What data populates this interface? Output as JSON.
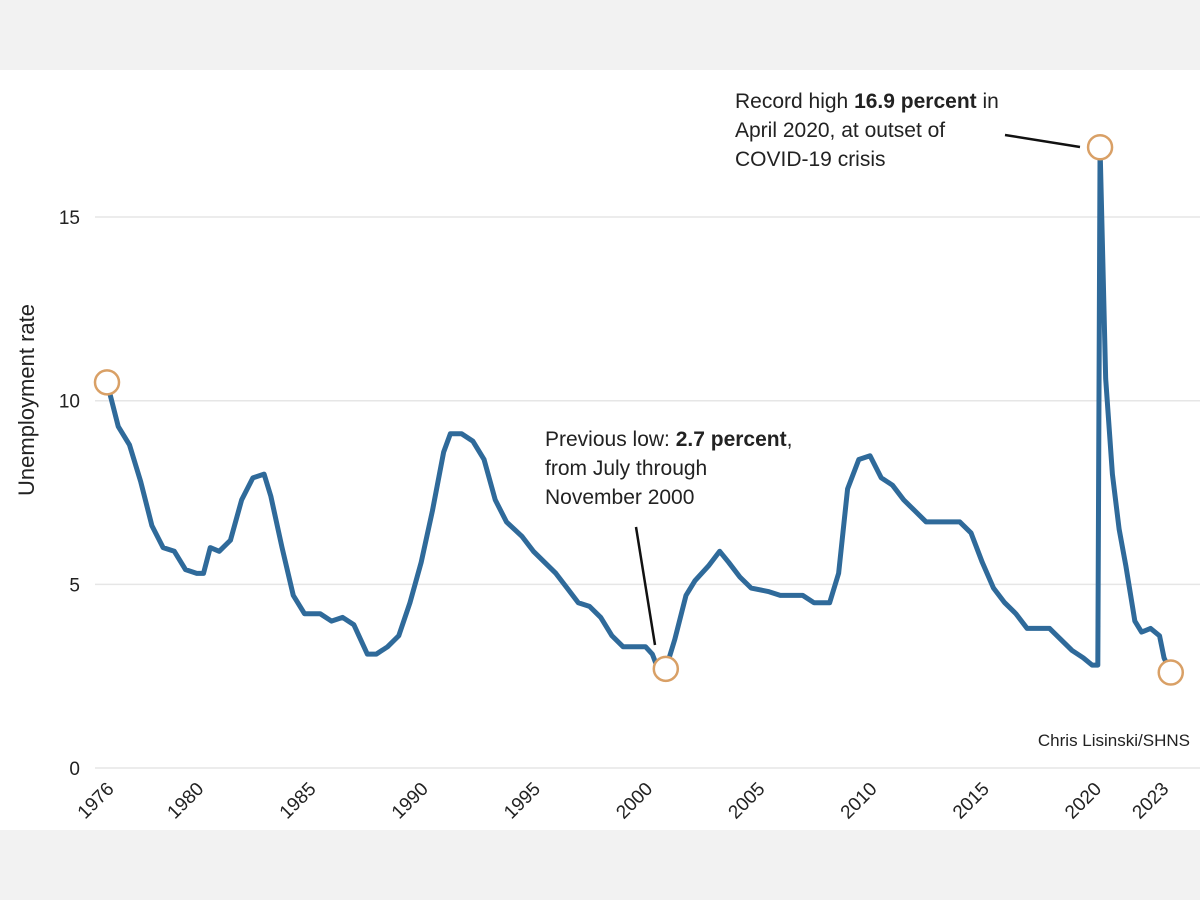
{
  "chart_data": {
    "type": "line",
    "y_label": "Unemployment rate",
    "source": "Chris Lisinski/SHNS",
    "x": [
      1976.0,
      1976.5,
      1977.0,
      1977.5,
      1978.0,
      1978.5,
      1979.0,
      1979.5,
      1980.0,
      1980.3,
      1980.6,
      1981.0,
      1981.5,
      1982.0,
      1982.5,
      1983.0,
      1983.3,
      1983.8,
      1984.3,
      1984.8,
      1985.5,
      1986.0,
      1986.5,
      1987.0,
      1987.6,
      1988.0,
      1988.5,
      1989.0,
      1989.5,
      1990.0,
      1990.5,
      1991.0,
      1991.3,
      1991.8,
      1992.3,
      1992.8,
      1993.3,
      1993.8,
      1994.5,
      1995.0,
      1995.5,
      1996.0,
      1996.5,
      1997.0,
      1997.5,
      1998.0,
      1998.5,
      1999.0,
      1999.5,
      2000.0,
      2000.3,
      2000.55,
      2000.9,
      2001.3,
      2001.8,
      2002.2,
      2002.8,
      2003.3,
      2003.7,
      2004.2,
      2004.7,
      2005.5,
      2006.0,
      2007.0,
      2007.5,
      2008.2,
      2008.6,
      2009.0,
      2009.5,
      2010.0,
      2010.5,
      2011.0,
      2011.5,
      2012.0,
      2012.5,
      2013.0,
      2013.5,
      2014.0,
      2014.5,
      2015.0,
      2015.5,
      2016.0,
      2016.5,
      2017.0,
      2017.5,
      2018.0,
      2018.5,
      2019.0,
      2019.5,
      2019.9,
      2020.15,
      2020.25,
      2020.5,
      2020.8,
      2021.1,
      2021.4,
      2021.8,
      2022.1,
      2022.5,
      2022.9,
      2023.1,
      2023.4
    ],
    "series": [
      {
        "name": "Unemployment rate",
        "color": "#2f6a9a",
        "values": [
          10.5,
          9.3,
          8.8,
          7.8,
          6.6,
          6.0,
          5.9,
          5.4,
          5.3,
          5.3,
          6.0,
          5.9,
          6.2,
          7.3,
          7.9,
          8.0,
          7.4,
          6.0,
          4.7,
          4.2,
          4.2,
          4.0,
          4.1,
          3.9,
          3.1,
          3.1,
          3.3,
          3.6,
          4.5,
          5.6,
          7.0,
          8.6,
          9.1,
          9.1,
          8.9,
          8.4,
          7.3,
          6.7,
          6.3,
          5.9,
          5.6,
          5.3,
          4.9,
          4.5,
          4.4,
          4.1,
          3.6,
          3.3,
          3.3,
          3.3,
          3.1,
          2.7,
          2.7,
          3.5,
          4.7,
          5.1,
          5.5,
          5.9,
          5.6,
          5.2,
          4.9,
          4.8,
          4.7,
          4.7,
          4.5,
          4.5,
          5.3,
          7.6,
          8.4,
          8.5,
          7.9,
          7.7,
          7.3,
          7.0,
          6.7,
          6.7,
          6.7,
          6.7,
          6.4,
          5.6,
          4.9,
          4.5,
          4.2,
          3.8,
          3.8,
          3.8,
          3.5,
          3.2,
          3.0,
          2.8,
          2.8,
          16.9,
          10.6,
          8.0,
          6.5,
          5.5,
          4.0,
          3.7,
          3.8,
          3.6,
          3.0,
          2.6
        ]
      }
    ],
    "xlim": [
      1976,
      2023.5
    ],
    "xticks": [
      1976,
      1980,
      1985,
      1990,
      1995,
      2000,
      2005,
      2010,
      2015,
      2020,
      2023
    ],
    "ylim": [
      0,
      17.5
    ],
    "yticks": [
      0,
      5,
      10,
      15
    ],
    "grid": true,
    "highlight_color": "#d9a066",
    "annotations": [
      {
        "lines": [
          [
            {
              "text": "Record high "
            },
            {
              "text": "16.9 percent",
              "bold": true
            },
            {
              "text": " in"
            }
          ],
          [
            {
              "text": "April 2020, at outset of"
            }
          ],
          [
            {
              "text": "COVID-19 crisis"
            }
          ]
        ]
      },
      {
        "lines": [
          [
            {
              "text": "Previous low: "
            },
            {
              "text": "2.7 percent",
              "bold": true
            },
            {
              "text": ","
            }
          ],
          [
            {
              "text": "from July through"
            }
          ],
          [
            {
              "text": "November 2000"
            }
          ]
        ]
      }
    ]
  }
}
